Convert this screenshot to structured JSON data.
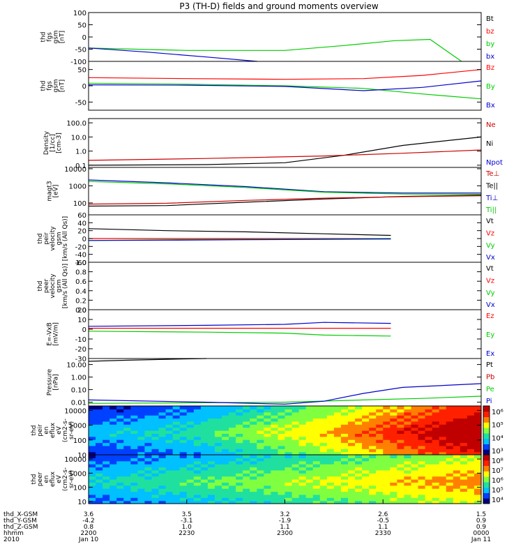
{
  "chart_data": {
    "type": "line",
    "title": "P3 (TH-D) fields and ground moments overview",
    "x_time_ticks": [
      "2200",
      "2230",
      "2300",
      "2330",
      "0000"
    ],
    "x_date_labels": [
      "Jan 10",
      "Jan 11"
    ],
    "ephemeris": {
      "labels": [
        "thd_X-GSM",
        "thd_Y-GSM",
        "thd_Z-GSM",
        "hhmm",
        "2010"
      ],
      "rows": [
        [
          "3.6",
          "3.5",
          "3.2",
          "2.6",
          "1.5"
        ],
        [
          "-4.2",
          "-3.1",
          "-1.9",
          "-0.5",
          "0.9"
        ],
        [
          "0.8",
          "1.0",
          "1.1",
          "1.1",
          "0.9"
        ]
      ]
    },
    "panels": [
      {
        "id": "fgs",
        "ylabel": [
          "thd",
          "fgs",
          "gsm",
          "[nT]"
        ],
        "scale": "linear",
        "ylim": [
          -100,
          100
        ],
        "yticks": [
          "100",
          "50",
          "0",
          "-50",
          "-100"
        ],
        "tickvals": [
          100,
          50,
          0,
          -50,
          -100
        ],
        "legend": [
          {
            "name": "Bt",
            "color": "#000000"
          },
          {
            "name": "bz",
            "color": "#ff0000"
          },
          {
            "name": "by",
            "color": "#00cc00"
          },
          {
            "name": "bx",
            "color": "#0000cc"
          }
        ],
        "series": [
          {
            "name": "by",
            "color": "#00cc00",
            "x": [
              0,
              0.25,
              0.5,
              0.65,
              0.78,
              0.87,
              0.95
            ],
            "y": [
              -45,
              -55,
              -55,
              -35,
              -15,
              -10,
              -100
            ]
          },
          {
            "name": "bx",
            "color": "#0000cc",
            "x": [
              0,
              0.15,
              0.3,
              0.43
            ],
            "y": [
              -45,
              -62,
              -82,
              -100
            ]
          }
        ]
      },
      {
        "id": "fgs-despun",
        "ylabel": [
          "thd",
          "fgs",
          "gsm",
          "[nT]"
        ],
        "scale": "linear",
        "ylim": [
          -75,
          75
        ],
        "yticks": [
          "50",
          "0",
          "-50"
        ],
        "tickvals": [
          50,
          0,
          -50
        ],
        "legend": [
          {
            "name": "Bz",
            "color": "#ff0000"
          },
          {
            "name": "By",
            "color": "#00cc00"
          },
          {
            "name": "Bx",
            "color": "#0000cc"
          }
        ],
        "series": [
          {
            "name": "Bz",
            "color": "#ff0000",
            "x": [
              0,
              0.25,
              0.5,
              0.7,
              0.85,
              1.0
            ],
            "y": [
              25,
              22,
              20,
              22,
              32,
              50
            ]
          },
          {
            "name": "By",
            "color": "#00cc00",
            "x": [
              0,
              0.25,
              0.5,
              0.7,
              0.85,
              1.0
            ],
            "y": [
              8,
              5,
              0,
              -8,
              -25,
              -40
            ]
          },
          {
            "name": "Bx",
            "color": "#0000cc",
            "x": [
              0,
              0.25,
              0.5,
              0.7,
              0.85,
              1.0
            ],
            "y": [
              3,
              2,
              -2,
              -15,
              -5,
              15
            ]
          }
        ]
      },
      {
        "id": "density",
        "ylabel": [
          "Density",
          "[1/cc]",
          "[cm-3]"
        ],
        "scale": "log",
        "ylim": [
          0.07,
          200
        ],
        "yticks": [
          "100.0",
          "10.0",
          "1.0",
          "0.1"
        ],
        "tickvals": [
          100,
          10,
          1,
          0.1
        ],
        "legend": [
          {
            "name": "Ne",
            "color": "#cc0000"
          },
          {
            "name": "Ni",
            "color": "#000000"
          },
          {
            "name": "Npot",
            "color": "#0000cc"
          }
        ],
        "series": [
          {
            "name": "Ni",
            "color": "#000000",
            "x": [
              0,
              0.3,
              0.5,
              0.65,
              0.8,
              0.9,
              1.0
            ],
            "y": [
              0.1,
              0.11,
              0.15,
              0.5,
              2.5,
              5,
              10
            ]
          },
          {
            "name": "Ne",
            "color": "#cc0000",
            "x": [
              0,
              0.3,
              0.6,
              0.8,
              1.0
            ],
            "y": [
              0.22,
              0.3,
              0.45,
              0.7,
              1.2
            ]
          }
        ]
      },
      {
        "id": "temperature",
        "ylabel": [
          "magt3",
          "[eV]"
        ],
        "scale": "log",
        "ylim": [
          20,
          12000
        ],
        "yticks": [
          "10000",
          "1000",
          "100"
        ],
        "tickvals": [
          10000,
          1000,
          100
        ],
        "legend": [
          {
            "name": "Te⊥",
            "color": "#cc0000"
          },
          {
            "name": "Te||",
            "color": "#000000"
          },
          {
            "name": "Ti⊥",
            "color": "#0000cc"
          },
          {
            "name": "Ti||",
            "color": "#00cc00"
          }
        ],
        "series": [
          {
            "name": "Ti⊥",
            "color": "#0000cc",
            "x": [
              0,
              0.2,
              0.4,
              0.6,
              0.8,
              1.0
            ],
            "y": [
              2200,
              1500,
              900,
              450,
              380,
              380
            ]
          },
          {
            "name": "Ti||",
            "color": "#00cc00",
            "x": [
              0,
              0.2,
              0.4,
              0.6,
              0.8,
              1.0
            ],
            "y": [
              1800,
              1300,
              800,
              420,
              330,
              320
            ]
          },
          {
            "name": "Te||",
            "color": "#000000",
            "x": [
              0,
              0.2,
              0.4,
              0.6,
              0.8,
              1.0
            ],
            "y": [
              65,
              70,
              110,
              170,
              240,
              280
            ]
          },
          {
            "name": "Te⊥",
            "color": "#cc0000",
            "x": [
              0,
              0.2,
              0.4,
              0.6,
              0.8,
              1.0
            ],
            "y": [
              85,
              95,
              140,
              190,
              230,
              260
            ]
          }
        ]
      },
      {
        "id": "peir-velocity",
        "ylabel": [
          "thd",
          "peir",
          "velocity",
          "gsm",
          "[km/s (All Qs)]"
        ],
        "scale": "linear",
        "ylim": [
          -60,
          60
        ],
        "yticks": [
          "60",
          "40",
          "20",
          "0",
          "-20",
          "-40",
          "-60"
        ],
        "tickvals": [
          60,
          40,
          20,
          0,
          -20,
          -40,
          -60
        ],
        "legend": [
          {
            "name": "Vt",
            "color": "#000000"
          },
          {
            "name": "Vz",
            "color": "#ff0000"
          },
          {
            "name": "Vy",
            "color": "#00cc00"
          },
          {
            "name": "Vx",
            "color": "#0000cc"
          }
        ],
        "series": [
          {
            "name": "Vt",
            "color": "#000000",
            "x": [
              0,
              0.2,
              0.4,
              0.6,
              0.77
            ],
            "y": [
              25,
              20,
              17,
              12,
              8
            ]
          },
          {
            "name": "Vz",
            "color": "#ff0000",
            "x": [
              0,
              0.2,
              0.4,
              0.6,
              0.77
            ],
            "y": [
              0,
              0,
              0,
              0,
              0
            ]
          },
          {
            "name": "Vy",
            "color": "#00cc00",
            "x": [
              0,
              0.2,
              0.4,
              0.6,
              0.77
            ],
            "y": [
              -5,
              -3,
              -2,
              -1,
              0
            ]
          },
          {
            "name": "Vx",
            "color": "#0000cc",
            "x": [
              0,
              0.2,
              0.4,
              0.6,
              0.77
            ],
            "y": [
              -5,
              -4,
              -3,
              -2,
              -1
            ]
          }
        ]
      },
      {
        "id": "peer-velocity",
        "ylabel": [
          "thd",
          "peer",
          "velocity",
          "gsm",
          "[km/s (All Qs)]"
        ],
        "scale": "linear",
        "ylim": [
          0,
          1
        ],
        "yticks": [
          "1.0",
          "0.8",
          "0.6",
          "0.4",
          "0.2",
          "0.0"
        ],
        "tickvals": [
          1.0,
          0.8,
          0.6,
          0.4,
          0.2,
          0.0
        ],
        "legend": [
          {
            "name": "Vt",
            "color": "#000000"
          },
          {
            "name": "Vz",
            "color": "#ff0000"
          },
          {
            "name": "Vy",
            "color": "#00cc00"
          },
          {
            "name": "Vx",
            "color": "#0000cc"
          }
        ],
        "series": []
      },
      {
        "id": "efield",
        "ylabel": [
          "E=-VxB",
          "[mV/m]"
        ],
        "scale": "linear",
        "ylim": [
          -30,
          20
        ],
        "yticks": [
          "20",
          "10",
          "0",
          "-10",
          "-20",
          "-30"
        ],
        "tickvals": [
          20,
          10,
          0,
          -10,
          -20,
          -30
        ],
        "legend": [
          {
            "name": "Ez",
            "color": "#ff0000"
          },
          {
            "name": "Ey",
            "color": "#00cc00"
          },
          {
            "name": "Ex",
            "color": "#0000cc"
          }
        ],
        "series": [
          {
            "name": "Ex",
            "color": "#0000cc",
            "x": [
              0,
              0.3,
              0.5,
              0.6,
              0.77
            ],
            "y": [
              3,
              4,
              5,
              7,
              6
            ]
          },
          {
            "name": "Ez",
            "color": "#ff0000",
            "x": [
              0,
              0.3,
              0.5,
              0.6,
              0.77
            ],
            "y": [
              1,
              1,
              1,
              1,
              1
            ]
          },
          {
            "name": "Ey",
            "color": "#00cc00",
            "x": [
              0,
              0.3,
              0.5,
              0.6,
              0.77
            ],
            "y": [
              -2,
              -3,
              -4,
              -6,
              -7
            ]
          }
        ]
      },
      {
        "id": "pressure",
        "ylabel": [
          "Pressure",
          "[nPa]"
        ],
        "scale": "log",
        "ylim": [
          0.005,
          30
        ],
        "yticks": [
          "10.00",
          "1.00",
          "0.10",
          "0.01"
        ],
        "tickvals": [
          10,
          1,
          0.1,
          0.01
        ],
        "legend": [
          {
            "name": "Pt",
            "color": "#000000"
          },
          {
            "name": "Pb",
            "color": "#cc0000"
          },
          {
            "name": "Pe",
            "color": "#00cc00"
          },
          {
            "name": "Pi",
            "color": "#0000cc"
          }
        ],
        "series": [
          {
            "name": "Pt",
            "color": "#000000",
            "x": [
              0,
              0.1,
              0.2,
              0.3
            ],
            "y": [
              18,
              22,
              26,
              30
            ]
          },
          {
            "name": "Pe",
            "color": "#00cc00",
            "x": [
              0,
              0.3,
              0.5,
              0.7,
              0.85,
              1.0
            ],
            "y": [
              0.008,
              0.009,
              0.01,
              0.015,
              0.02,
              0.03
            ]
          },
          {
            "name": "Pi",
            "color": "#0000cc",
            "x": [
              0,
              0.3,
              0.5,
              0.6,
              0.7,
              0.8,
              1.0
            ],
            "y": [
              0.015,
              0.01,
              0.007,
              0.012,
              0.05,
              0.15,
              0.3
            ]
          }
        ]
      },
      {
        "id": "peir-energy-spectrogram",
        "type": "heatmap",
        "ylabel": [
          "thd",
          "peir",
          "en",
          "eflux",
          "eV",
          "(cm2-s-",
          "sr-eV)"
        ],
        "scale": "log",
        "ylim": [
          10,
          20000
        ],
        "yticks": [
          "10000",
          "1000",
          "100",
          "10"
        ],
        "tickvals": [
          10000,
          1000,
          100,
          10
        ],
        "colorbar_ticks": [
          "10⁶",
          "10⁵",
          "10⁴",
          "10³"
        ],
        "colormap": [
          "#000080",
          "#0040ff",
          "#00c0ff",
          "#20e0a0",
          "#80ff40",
          "#ffff00",
          "#ff8000",
          "#ff2000",
          "#c00000"
        ],
        "time_profile": [
          0.25,
          0.3,
          0.35,
          0.45,
          0.55,
          0.65,
          0.78,
          0.9,
          1.0
        ]
      },
      {
        "id": "peer-energy-spectrogram",
        "type": "heatmap",
        "ylabel": [
          "thd",
          "peer",
          "en",
          "eflux",
          "eV",
          "(cm2-s-",
          "sr-eV)"
        ],
        "scale": "log",
        "ylim": [
          7,
          20000
        ],
        "yticks": [
          "10000",
          "1000",
          "100",
          "10"
        ],
        "tickvals": [
          10000,
          1000,
          100,
          10
        ],
        "colorbar_ticks": [
          "10⁸",
          "10⁷",
          "10⁶",
          "10⁵",
          "10⁴"
        ],
        "colormap": [
          "#000080",
          "#0040ff",
          "#00c0ff",
          "#20e0a0",
          "#80ff40",
          "#ffff00",
          "#ff8000",
          "#ff2000",
          "#c00000"
        ],
        "time_profile": [
          0.3,
          0.35,
          0.4,
          0.45,
          0.5,
          0.55,
          0.6,
          0.65,
          0.7
        ]
      }
    ]
  }
}
